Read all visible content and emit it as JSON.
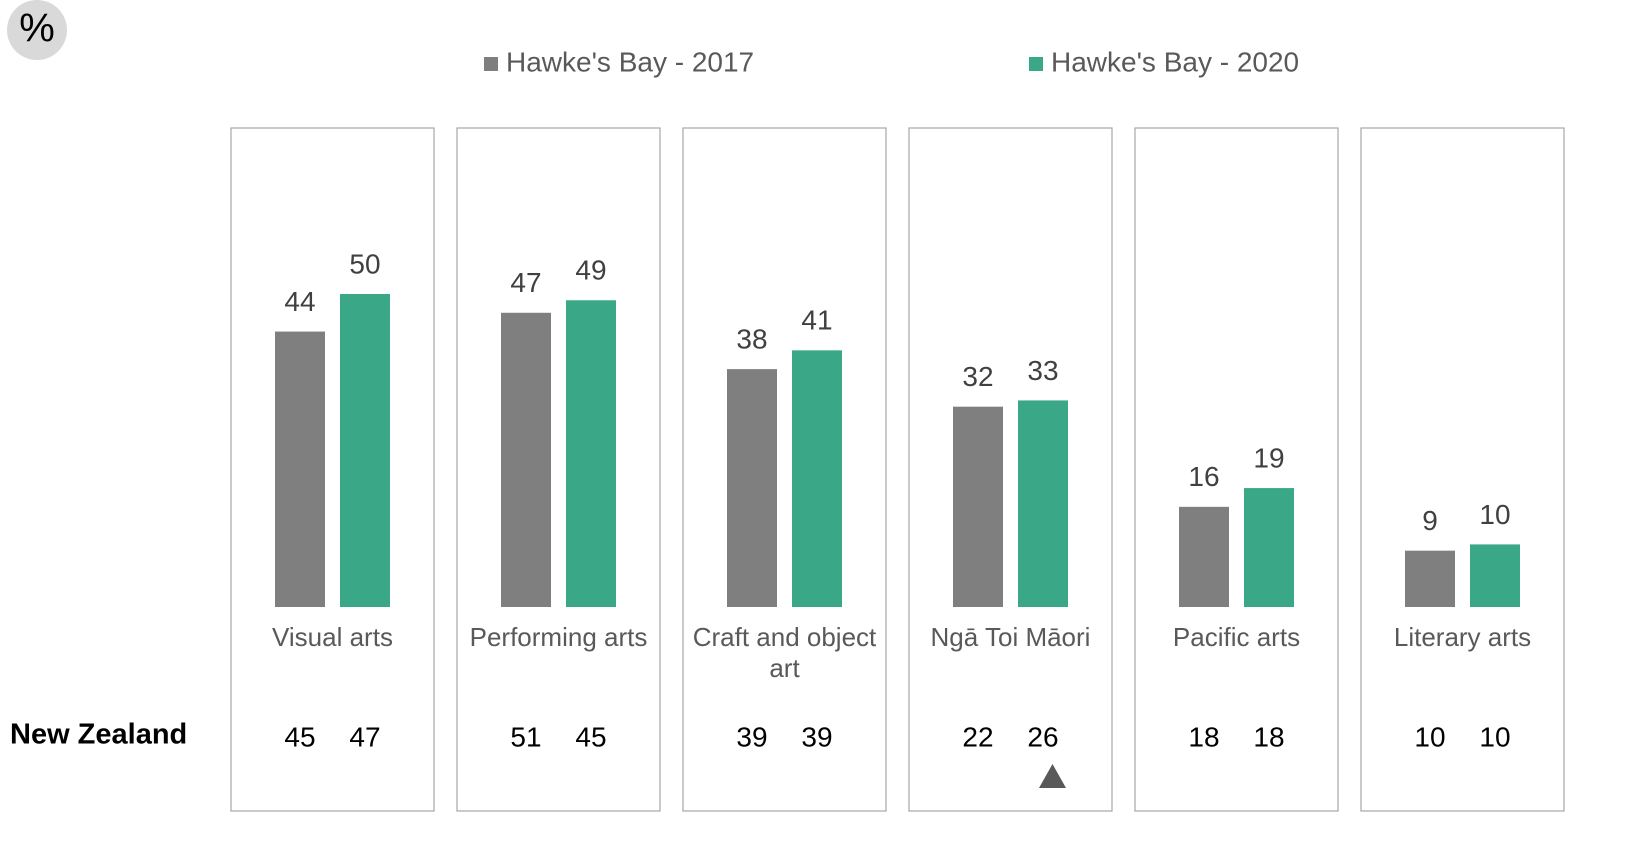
{
  "chart_data": {
    "type": "bar",
    "unit": "%",
    "categories": [
      "Visual arts",
      "Performing arts",
      "Craft and object art",
      "Ngā Toi Māori",
      "Pacific arts",
      "Literary arts"
    ],
    "series": [
      {
        "name": "Hawke's Bay - 2017",
        "color": "#7f7f7f",
        "values": [
          44,
          47,
          38,
          32,
          16,
          9
        ],
        "new_zealand_values": [
          45,
          51,
          39,
          22,
          18,
          10
        ]
      },
      {
        "name": "Hawke's Bay - 2020",
        "color": "#3aa887",
        "values": [
          50,
          49,
          41,
          33,
          19,
          10
        ],
        "new_zealand_values": [
          47,
          45,
          39,
          26,
          18,
          10
        ]
      }
    ],
    "comparison_label": "New Zealand",
    "ylim": [
      0,
      50
    ]
  }
}
